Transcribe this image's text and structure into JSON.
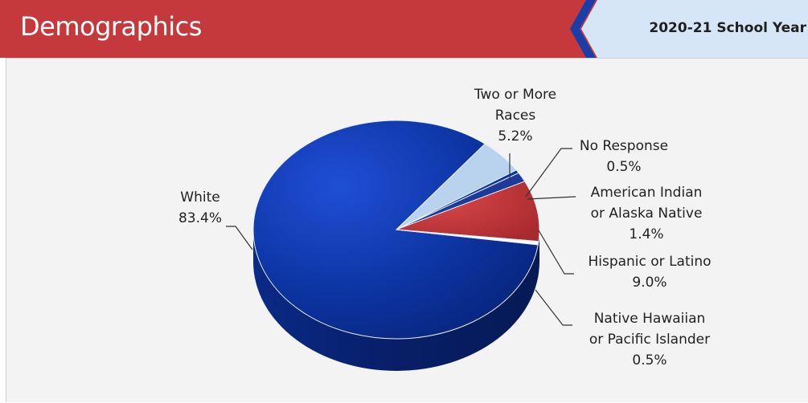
{
  "header": {
    "title": "Demographics",
    "school_year": "2020-21 School Year"
  },
  "colors": {
    "header_red": "#c5383b",
    "badge_blue": "#1a3ea8",
    "badge_light": "#d6e6f7",
    "white": "#0d35a6",
    "two_or_more": "#b9d3ee",
    "american_indian": "#1b3a9a",
    "hispanic": "#c5383b",
    "native_hawaiian": "#ffffff"
  },
  "chart_data": {
    "type": "pie",
    "title": "",
    "slices": [
      {
        "label_lines": [
          "White"
        ],
        "value_label": "83.4%",
        "value": 83.4
      },
      {
        "label_lines": [
          "Two or More",
          "Races"
        ],
        "value_label": "5.2%",
        "value": 5.2
      },
      {
        "label_lines": [
          "No Response"
        ],
        "value_label": "0.5%",
        "value": 0.5
      },
      {
        "label_lines": [
          "American Indian",
          "or Alaska Native"
        ],
        "value_label": "1.4%",
        "value": 1.4
      },
      {
        "label_lines": [
          "Hispanic or Latino"
        ],
        "value_label": "9.0%",
        "value": 9.0
      },
      {
        "label_lines": [
          "Native Hawaiian",
          "or Pacific Islander"
        ],
        "value_label": "0.5%",
        "value": 0.5
      }
    ]
  }
}
